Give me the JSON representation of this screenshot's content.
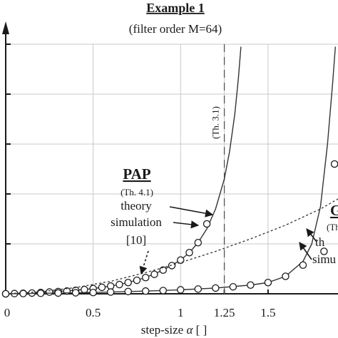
{
  "chart_data": {
    "type": "line",
    "title": "Example 1",
    "subtitle": "(filter order M=64)",
    "xlabel_prefix": "step-size",
    "xlabel_symbol": "α",
    "xlabel_suffix": "[ ]",
    "ylabel": "",
    "xlim": [
      0,
      1.9
    ],
    "ylim": [
      0,
      1
    ],
    "grid": true,
    "xticks": [
      {
        "value": 0,
        "label": "0"
      },
      {
        "value": 0.5,
        "label": "0.5"
      },
      {
        "value": 1,
        "label": "1"
      },
      {
        "value": 1.25,
        "label": "1.25"
      },
      {
        "value": 1.5,
        "label": "1.5"
      }
    ],
    "ytick_values": [
      0,
      0.2,
      0.4,
      0.6,
      0.8,
      1.0
    ],
    "vline": {
      "x": 1.25,
      "label": "(Th. 3.1)"
    },
    "series": [
      {
        "key": "pap_theory",
        "style": "solid",
        "x": [
          0.0,
          0.1,
          0.2,
          0.3,
          0.4,
          0.5,
          0.6,
          0.7,
          0.8,
          0.9,
          1.0,
          1.05,
          1.1,
          1.15,
          1.2,
          1.25,
          1.28,
          1.31,
          1.33,
          1.345
        ],
        "y": [
          0.0,
          0.002,
          0.005,
          0.009,
          0.014,
          0.021,
          0.031,
          0.045,
          0.065,
          0.095,
          0.135,
          0.165,
          0.205,
          0.26,
          0.34,
          0.46,
          0.57,
          0.72,
          0.86,
          0.99
        ]
      },
      {
        "key": "pap_simulation",
        "style": "markers",
        "x": [
          0.0,
          0.05,
          0.1,
          0.15,
          0.2,
          0.25,
          0.3,
          0.35,
          0.4,
          0.45,
          0.5,
          0.55,
          0.6,
          0.65,
          0.7,
          0.75,
          0.8,
          0.85,
          0.9,
          0.95,
          1.0,
          1.05,
          1.1,
          1.15
        ],
        "y": [
          0.0,
          0.001,
          0.002,
          0.003,
          0.005,
          0.007,
          0.009,
          0.011,
          0.014,
          0.017,
          0.021,
          0.026,
          0.031,
          0.037,
          0.045,
          0.054,
          0.065,
          0.078,
          0.095,
          0.113,
          0.135,
          0.165,
          0.205,
          0.28
        ]
      },
      {
        "key": "dotted_curve",
        "style": "dotted",
        "x": [
          0.0,
          0.2,
          0.4,
          0.6,
          0.8,
          1.0,
          1.2,
          1.4,
          1.6,
          1.8,
          1.9
        ],
        "y": [
          0.0,
          0.008,
          0.025,
          0.05,
          0.085,
          0.125,
          0.17,
          0.22,
          0.275,
          0.34,
          0.38
        ]
      },
      {
        "key": "second_theory",
        "style": "solid",
        "x": [
          0.0,
          0.2,
          0.4,
          0.6,
          0.8,
          1.0,
          1.2,
          1.4,
          1.5,
          1.6,
          1.7,
          1.75,
          1.8,
          1.84,
          1.87,
          1.885
        ],
        "y": [
          0.0,
          0.002,
          0.004,
          0.007,
          0.011,
          0.016,
          0.023,
          0.035,
          0.045,
          0.07,
          0.13,
          0.2,
          0.35,
          0.6,
          0.85,
          0.99
        ]
      },
      {
        "key": "second_simulation",
        "style": "markers",
        "x": [
          0.0,
          0.1,
          0.2,
          0.3,
          0.4,
          0.5,
          0.6,
          0.7,
          0.8,
          0.9,
          1.0,
          1.1,
          1.2,
          1.3,
          1.4,
          1.5,
          1.6,
          1.7,
          1.82,
          1.88
        ],
        "y": [
          0.0,
          0.001,
          0.002,
          0.003,
          0.004,
          0.005,
          0.007,
          0.009,
          0.011,
          0.013,
          0.016,
          0.019,
          0.023,
          0.028,
          0.035,
          0.045,
          0.07,
          0.115,
          0.17,
          0.52
        ]
      }
    ],
    "annotations": {
      "pap_heading": "PAP",
      "pap_ref": "(Th. 4.1)",
      "pap_theory": "theory",
      "pap_simulation": "simulation",
      "pap_cite": "[10]",
      "right_heading": "G",
      "right_ref": "(Th",
      "right_theory": "th",
      "right_simulation": "simu"
    }
  }
}
